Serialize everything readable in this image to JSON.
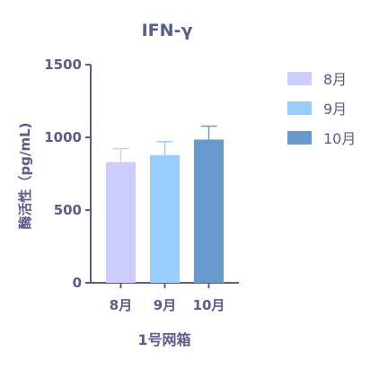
{
  "chart_data": {
    "type": "bar",
    "title": "IFN-γ",
    "xlabel": "1号网箱",
    "ylabel": "酶活性（pg/mL)",
    "categories": [
      "8月",
      "9月",
      "10月"
    ],
    "values": [
      830,
      878,
      985
    ],
    "errors": [
      92,
      92,
      92
    ],
    "ylim": [
      0,
      1500
    ],
    "yticks": [
      0,
      500,
      1000,
      1500
    ],
    "colors": [
      "#CCCCFF",
      "#99CCFF",
      "#6699CC"
    ],
    "legend": {
      "position": "top-right",
      "entries": [
        "8月",
        "9月",
        "10月"
      ]
    },
    "grid": false,
    "text_color": "#5B5B8F"
  }
}
